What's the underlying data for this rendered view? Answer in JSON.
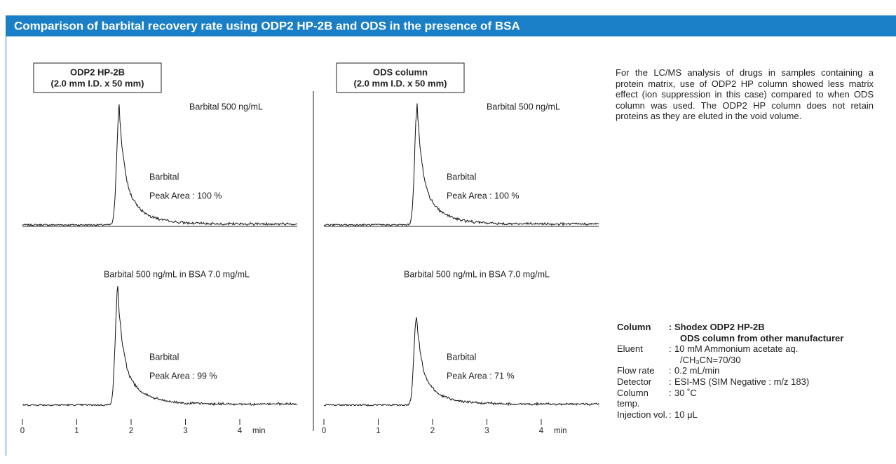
{
  "header": {
    "title": "Comparison of barbital recovery rate using ODP2 HP-2B and ODS in the presence of BSA"
  },
  "panels": [
    {
      "column_label": [
        "ODP2 HP-2B",
        "(2.0 mm I.D. x 50 mm)"
      ],
      "traces": [
        {
          "sample": "Barbital 500 ng/mL",
          "peak": "Barbital",
          "area": "Peak Area : 100 %"
        },
        {
          "sample": "Barbital 500 ng/mL in BSA  7.0 mg/mL",
          "peak": "Barbital",
          "area": "Peak Area : 99 %"
        }
      ]
    },
    {
      "column_label": [
        "ODS column",
        "(2.0 mm I.D. x 50 mm)"
      ],
      "traces": [
        {
          "sample": "Barbital 500 ng/mL",
          "peak": "Barbital",
          "area": "Peak Area : 100 %"
        },
        {
          "sample": "Barbital 500 ng/mL in BSA  7.0 mg/mL",
          "peak": "Barbital",
          "area": "Peak Area : 71 %"
        }
      ]
    }
  ],
  "axis": {
    "ticks": [
      "0",
      "1",
      "2",
      "3",
      "4"
    ],
    "unit": "min"
  },
  "description": "For the LC/MS analysis of drugs in samples containing a protein matrix, use of ODP2 HP column showed less matrix effect (ion suppression in this case) compared to when ODS column was used. The ODP2 HP column does not retain proteins as they are eluted in the void volume.",
  "conditions": [
    {
      "label": "Column",
      "value": [
        "Shodex ODP2 HP-2B",
        "ODS column from other manufacturer"
      ]
    },
    {
      "label": "Eluent",
      "value": [
        "10 mM Ammonium acetate aq.",
        "/CH₃CN=70/30"
      ]
    },
    {
      "label": "Flow rate",
      "value": [
        "0.2 mL/min"
      ]
    },
    {
      "label": "Detector",
      "value": [
        "ESI-MS (SIM Negative : m/z 183)"
      ]
    },
    {
      "label": "Column temp.",
      "value": [
        "30 ˚C"
      ]
    },
    {
      "label": "Injection vol.",
      "value": [
        "10 μL"
      ]
    }
  ]
}
